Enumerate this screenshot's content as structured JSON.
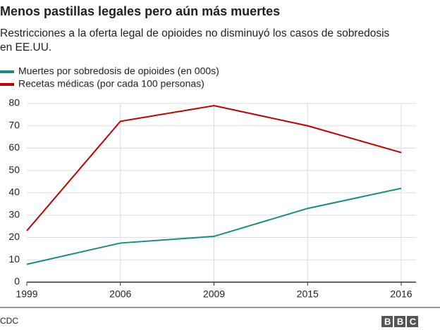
{
  "chart_data": {
    "type": "line",
    "title": "Menos pastillas legales pero aún más muertes",
    "subtitle": "Restricciones a la oferta legal de opioides no disminuyó los casos de sobredosis en EE.UU.",
    "categories": [
      "1999",
      "2006",
      "2009",
      "2015",
      "2016"
    ],
    "series": [
      {
        "name": "Muertes por sobredosis de opioides (en 000s)",
        "color": "#168c86",
        "values": [
          8,
          17.5,
          20.5,
          33,
          42
        ]
      },
      {
        "name": "Recetas médicas  (por cada 100 personas)",
        "color": "#c00000",
        "values": [
          23,
          72,
          79,
          70,
          58
        ]
      }
    ],
    "ylim": [
      0,
      80
    ],
    "yticks": [
      0,
      10,
      20,
      30,
      40,
      50,
      60,
      70,
      80
    ],
    "grid": true,
    "source": "CDC",
    "logo": "BBC"
  }
}
